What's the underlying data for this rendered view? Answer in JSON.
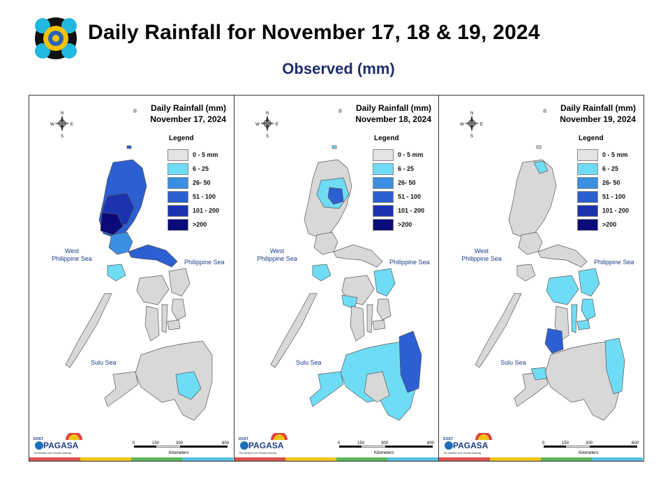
{
  "header": {
    "title": "Daily Rainfall for November 17, 18 & 19, 2024",
    "subtitle": "Observed (mm)"
  },
  "legend": {
    "title": "Legend",
    "items": [
      {
        "label": "0 - 5 mm",
        "color": "#e3e3e3"
      },
      {
        "label": "6 - 25",
        "color": "#6fdcf5"
      },
      {
        "label": "26- 50",
        "color": "#3b8fe3"
      },
      {
        "label": "51 - 100",
        "color": "#2c5fd1"
      },
      {
        "label": "101 - 200",
        "color": "#1c33b0"
      },
      {
        "label": ">200",
        "color": "#0a0a7a"
      }
    ]
  },
  "map_labels": {
    "west_sea": "West\nPhilippine Sea",
    "east_sea": "Philippine Sea",
    "sulu_sea": "Sulu Sea",
    "compass": {
      "n": "N",
      "s": "S",
      "e": "E",
      "w": "W"
    },
    "scale": {
      "ticks": [
        "0",
        "150",
        "300",
        "600"
      ],
      "unit": "Kilometers"
    },
    "agency": "PAGASA",
    "agency_prefix": "DOST",
    "agency_tagline": "The Weather and Climate Authority"
  },
  "panel_title_prefix": "Daily Rainfall (mm)",
  "panels": [
    {
      "date": "November 17, 2024"
    },
    {
      "date": "November 18, 2024"
    },
    {
      "date": "November 19, 2024"
    }
  ],
  "colors": {
    "land_dry": "#d8d8d8",
    "border": "#555555",
    "stripe": [
      "#d9534f",
      "#f0c419",
      "#5cb85c",
      "#5bc0de"
    ]
  }
}
